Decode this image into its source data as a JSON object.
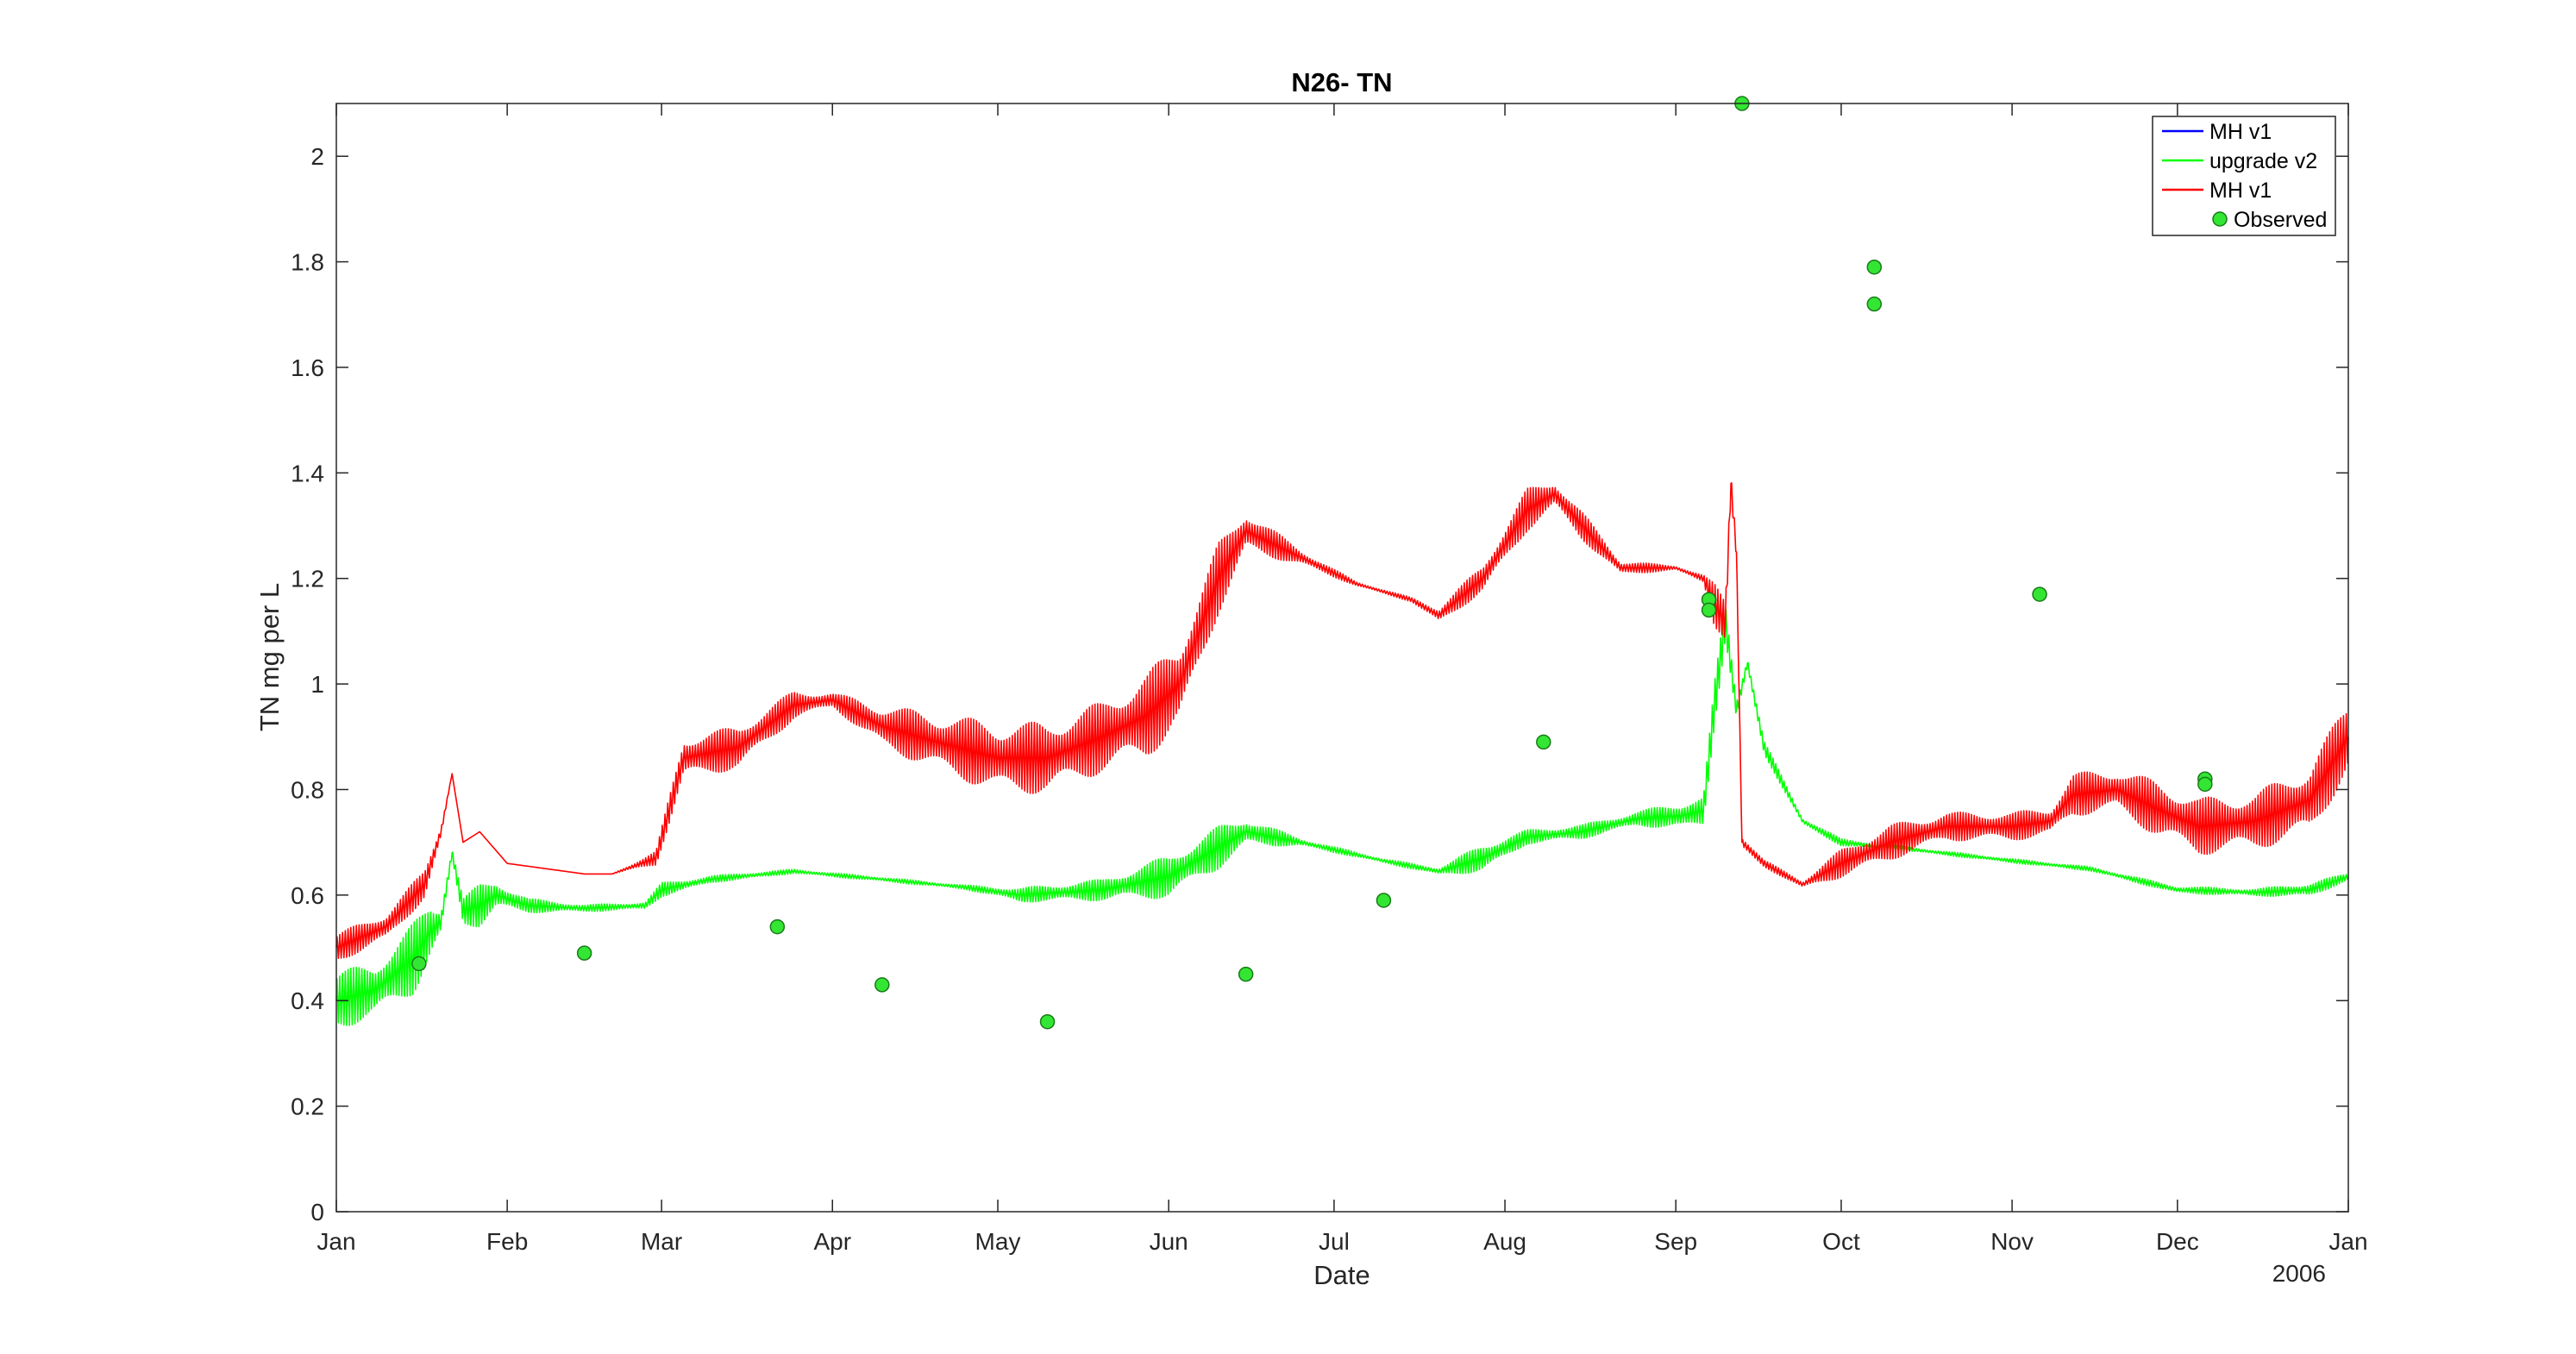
{
  "chart_data": {
    "type": "line",
    "title": "N26- TN",
    "xlabel": "Date",
    "ylabel": "TN mg per L",
    "year_label": "2006",
    "x_range": [
      "2006-01-01",
      "2007-01-01"
    ],
    "ylim": [
      0,
      2.1
    ],
    "x_ticks": [
      {
        "date": "2006-01-01",
        "label": "Jan"
      },
      {
        "date": "2006-02-01",
        "label": "Feb"
      },
      {
        "date": "2006-03-01",
        "label": "Mar"
      },
      {
        "date": "2006-04-01",
        "label": "Apr"
      },
      {
        "date": "2006-05-01",
        "label": "May"
      },
      {
        "date": "2006-06-01",
        "label": "Jun"
      },
      {
        "date": "2006-07-01",
        "label": "Jul"
      },
      {
        "date": "2006-08-01",
        "label": "Aug"
      },
      {
        "date": "2006-09-01",
        "label": "Sep"
      },
      {
        "date": "2006-10-01",
        "label": "Oct"
      },
      {
        "date": "2006-11-01",
        "label": "Nov"
      },
      {
        "date": "2006-12-01",
        "label": "Dec"
      },
      {
        "date": "2007-01-01",
        "label": "Jan"
      }
    ],
    "y_ticks": [
      0,
      0.2,
      0.4,
      0.6,
      0.8,
      1,
      1.2,
      1.4,
      1.6,
      1.8,
      2
    ],
    "y_tick_labels": [
      "0",
      "0.2",
      "0.4",
      "0.6",
      "0.8",
      "1",
      "1.2",
      "1.4",
      "1.6",
      "1.8",
      "2"
    ],
    "grid": false,
    "legend_position": "top-right",
    "colors": {
      "mh_v1_blue": "#0000ff",
      "upgrade_v2": "#00ff00",
      "mh_v1_red": "#ff0000",
      "observed_fill": "#33e633",
      "axes": "#262626"
    },
    "series": [
      {
        "name": "MH v1",
        "color": "#0000ff",
        "kind": "line",
        "oscillation": 0,
        "points": []
      },
      {
        "name": "upgrade v2",
        "color": "#00ff00",
        "kind": "line",
        "points": [
          [
            "2006-01-01",
            0.4,
            0.04
          ],
          [
            "2006-01-08",
            0.42,
            0.04
          ],
          [
            "2006-01-15",
            0.48,
            0.05
          ],
          [
            "2006-01-18",
            0.53,
            0.04
          ],
          [
            "2006-01-20",
            0.55,
            0.02
          ],
          [
            "2006-01-22",
            0.68,
            0.01
          ],
          [
            "2006-01-24",
            0.57,
            0.02
          ],
          [
            "2006-01-27",
            0.58,
            0.03
          ],
          [
            "2006-01-30",
            0.6,
            0.02
          ],
          [
            "2006-02-05",
            0.58,
            0.01
          ],
          [
            "2006-02-15",
            0.575,
            0.005
          ],
          [
            "2006-02-26",
            0.58,
            0.005
          ],
          [
            "2006-03-01",
            0.61,
            0.01
          ],
          [
            "2006-03-10",
            0.63,
            0.005
          ],
          [
            "2006-03-25",
            0.645,
            0.003
          ],
          [
            "2006-04-10",
            0.63,
            0.003
          ],
          [
            "2006-04-25",
            0.615,
            0.003
          ],
          [
            "2006-05-05",
            0.6,
            0.01
          ],
          [
            "2006-05-20",
            0.61,
            0.015
          ],
          [
            "2006-06-01",
            0.635,
            0.03
          ],
          [
            "2006-06-10",
            0.69,
            0.03
          ],
          [
            "2006-06-15",
            0.72,
            0.02
          ],
          [
            "2006-06-25",
            0.7,
            0.005
          ],
          [
            "2006-07-10",
            0.665,
            0.003
          ],
          [
            "2006-07-20",
            0.645,
            0.005
          ],
          [
            "2006-07-28",
            0.67,
            0.02
          ],
          [
            "2006-08-05",
            0.71,
            0.01
          ],
          [
            "2006-08-15",
            0.72,
            0.01
          ],
          [
            "2006-08-25",
            0.745,
            0.01
          ],
          [
            "2006-09-02",
            0.75,
            0.02
          ],
          [
            "2006-09-06",
            0.76,
            0.02
          ],
          [
            "2006-09-08",
            0.96,
            0.03
          ],
          [
            "2006-09-10",
            1.12,
            0.03
          ],
          [
            "2006-09-12",
            0.95,
            0.02
          ],
          [
            "2006-09-14",
            1.04,
            0.01
          ],
          [
            "2006-09-17",
            0.88,
            0.01
          ],
          [
            "2006-09-24",
            0.74,
            0.005
          ],
          [
            "2006-10-01",
            0.7,
            0.005
          ],
          [
            "2006-10-15",
            0.685,
            0.003
          ],
          [
            "2006-11-01",
            0.665,
            0.003
          ],
          [
            "2006-11-15",
            0.65,
            0.003
          ],
          [
            "2006-12-01",
            0.61,
            0.005
          ],
          [
            "2006-12-15",
            0.605,
            0.005
          ],
          [
            "2006-12-25",
            0.61,
            0.01
          ],
          [
            "2007-01-01",
            0.635,
            0.005
          ]
        ]
      },
      {
        "name": "MH v1",
        "color": "#ff0000",
        "kind": "line",
        "points": [
          [
            "2006-01-01",
            0.5,
            0.02
          ],
          [
            "2006-01-10",
            0.54,
            0.02
          ],
          [
            "2006-01-17",
            0.62,
            0.02
          ],
          [
            "2006-01-20",
            0.72,
            0.01
          ],
          [
            "2006-01-22",
            0.83,
            0.0
          ],
          [
            "2006-01-24",
            0.7,
            0.0
          ],
          [
            "2006-01-27",
            0.72,
            0.0
          ],
          [
            "2006-02-01",
            0.66,
            0.0
          ],
          [
            "2006-02-15",
            0.64,
            0.0
          ],
          [
            "2006-02-20",
            0.64,
            0.0
          ],
          [
            "2006-02-28",
            0.67,
            0.01
          ],
          [
            "2006-03-05",
            0.86,
            0.03
          ],
          [
            "2006-03-15",
            0.88,
            0.03
          ],
          [
            "2006-03-25",
            0.96,
            0.02
          ],
          [
            "2006-04-01",
            0.97,
            0.01
          ],
          [
            "2006-04-10",
            0.92,
            0.03
          ],
          [
            "2006-04-20",
            0.89,
            0.04
          ],
          [
            "2006-05-01",
            0.86,
            0.05
          ],
          [
            "2006-05-10",
            0.86,
            0.05
          ],
          [
            "2006-05-20",
            0.9,
            0.05
          ],
          [
            "2006-05-28",
            0.94,
            0.06
          ],
          [
            "2006-06-03",
            1.0,
            0.06
          ],
          [
            "2006-06-10",
            1.2,
            0.05
          ],
          [
            "2006-06-15",
            1.29,
            0.03
          ],
          [
            "2006-06-25",
            1.24,
            0.01
          ],
          [
            "2006-07-05",
            1.19,
            0.003
          ],
          [
            "2006-07-15",
            1.16,
            0.003
          ],
          [
            "2006-07-20",
            1.13,
            0.01
          ],
          [
            "2006-07-28",
            1.2,
            0.02
          ],
          [
            "2006-08-05",
            1.33,
            0.03
          ],
          [
            "2006-08-10",
            1.36,
            0.02
          ],
          [
            "2006-08-15",
            1.3,
            0.02
          ],
          [
            "2006-08-22",
            1.22,
            0.01
          ],
          [
            "2006-09-01",
            1.22,
            0.003
          ],
          [
            "2006-09-06",
            1.2,
            0.005
          ],
          [
            "2006-09-08",
            1.15,
            0.03
          ],
          [
            "2006-09-10",
            1.12,
            0.03
          ],
          [
            "2006-09-11",
            1.38,
            0.02
          ],
          [
            "2006-09-12",
            1.25,
            0.02
          ],
          [
            "2006-09-13",
            0.7,
            0.01
          ],
          [
            "2006-09-17",
            0.66,
            0.005
          ],
          [
            "2006-09-24",
            0.62,
            0.005
          ],
          [
            "2006-10-01",
            0.66,
            0.02
          ],
          [
            "2006-10-10",
            0.7,
            0.025
          ],
          [
            "2006-10-20",
            0.73,
            0.02
          ],
          [
            "2006-11-01",
            0.73,
            0.02
          ],
          [
            "2006-11-08",
            0.74,
            0.02
          ],
          [
            "2006-11-12",
            0.79,
            0.03
          ],
          [
            "2006-11-20",
            0.8,
            0.03
          ],
          [
            "2006-11-28",
            0.76,
            0.04
          ],
          [
            "2006-12-05",
            0.73,
            0.04
          ],
          [
            "2006-12-15",
            0.74,
            0.04
          ],
          [
            "2006-12-25",
            0.78,
            0.05
          ],
          [
            "2007-01-01",
            0.9,
            0.05
          ]
        ]
      },
      {
        "name": "Observed",
        "color": "#33e633",
        "kind": "scatter",
        "points": [
          [
            "2006-01-16",
            0.47
          ],
          [
            "2006-02-15",
            0.49
          ],
          [
            "2006-03-22",
            0.54
          ],
          [
            "2006-04-10",
            0.43
          ],
          [
            "2006-05-10",
            0.36
          ],
          [
            "2006-06-15",
            0.45
          ],
          [
            "2006-07-10",
            0.59
          ],
          [
            "2006-08-08",
            0.89
          ],
          [
            "2006-09-07",
            1.16
          ],
          [
            "2006-09-07",
            1.14
          ],
          [
            "2006-09-13",
            2.1
          ],
          [
            "2006-10-07",
            1.79
          ],
          [
            "2006-10-07",
            1.72
          ],
          [
            "2006-11-06",
            1.17
          ],
          [
            "2006-12-06",
            0.82
          ],
          [
            "2006-12-06",
            0.81
          ]
        ]
      }
    ]
  }
}
